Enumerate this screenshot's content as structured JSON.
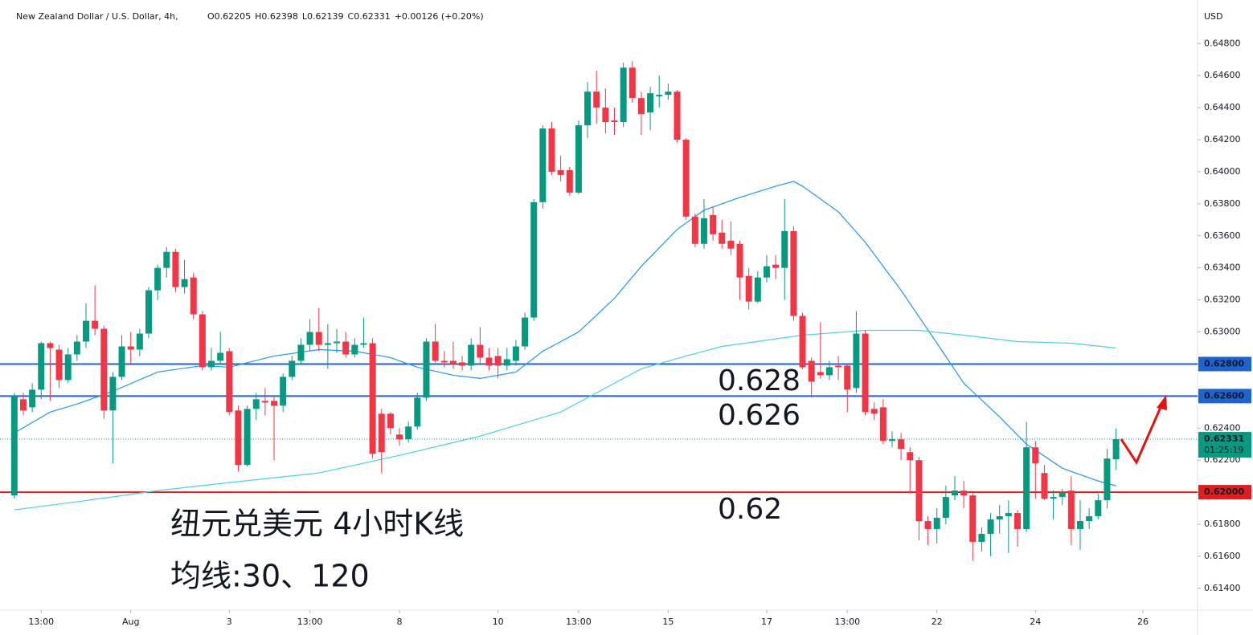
{
  "chart_data": {
    "type": "candlestick",
    "title": "New Zealand Dollar / U.S. Dollar, 4h,",
    "legend_values": [
      "O0.62205",
      "H0.62398",
      "L0.62139",
      "C0.62331",
      "+0.00126 (+0.20%)"
    ],
    "currency": "USD",
    "up_color": "#089981",
    "down_color": "#f23645",
    "open": [
      0.6198,
      0.6258,
      0.6253,
      0.6264,
      0.6293,
      0.6289,
      0.627,
      0.6286,
      0.6294,
      0.6307,
      0.6302,
      0.6251,
      0.6272,
      0.6291,
      0.6289,
      0.6299,
      0.6326,
      0.634,
      0.635,
      0.6328,
      0.6334,
      0.6311,
      0.6278,
      0.6282,
      0.6288,
      0.6251,
      0.6217,
      0.6252,
      0.6257,
      0.6257,
      0.6254,
      0.6272,
      0.6282,
      0.6292,
      0.63,
      0.6292,
      0.6293,
      0.6294,
      0.6286,
      0.6292,
      0.6293,
      0.6249,
      0.6249,
      0.6236,
      0.6233,
      0.6241,
      0.6259,
      0.6294,
      0.6282,
      0.6282,
      0.6281,
      0.6279,
      0.6292,
      0.6284,
      0.6285,
      0.6279,
      0.6282,
      0.6291,
      0.6309,
      0.6381,
      0.6427,
      0.6401,
      0.6401,
      0.6387,
      0.6429,
      0.645,
      0.644,
      0.6432,
      0.6431,
      0.6465,
      0.6446,
      0.6437,
      0.6447,
      0.6448,
      0.645,
      0.642,
      0.6372,
      0.6355,
      0.6373,
      0.6362,
      0.6357,
      0.6355,
      0.6335,
      0.6319,
      0.6334,
      0.6342,
      0.634,
      0.6363,
      0.631,
      0.6282,
      0.6275,
      0.6273,
      0.6279,
      0.6279,
      0.6265,
      0.6299,
      0.6252,
      0.6253,
      0.6232,
      0.6233,
      0.6225,
      0.622,
      0.6182,
      0.6177,
      0.6184,
      0.6198,
      0.6201,
      0.6198,
      0.6169,
      0.6174,
      0.6183,
      0.6185,
      0.6187,
      0.6177,
      0.6228,
      0.6212,
      0.6196,
      0.6197,
      0.6201,
      0.6177,
      0.6182,
      0.6185,
      0.6195,
      0.62205
    ],
    "high": [
      0.6262,
      0.6262,
      0.6268,
      0.6294,
      0.6294,
      0.6292,
      0.629,
      0.6298,
      0.6318,
      0.6329,
      0.6304,
      0.6275,
      0.6298,
      0.63,
      0.6302,
      0.6328,
      0.6342,
      0.6353,
      0.6352,
      0.6345,
      0.6337,
      0.6313,
      0.629,
      0.63,
      0.629,
      0.6254,
      0.6254,
      0.6262,
      0.6265,
      0.626,
      0.6274,
      0.6285,
      0.6296,
      0.6308,
      0.6315,
      0.6305,
      0.6302,
      0.63,
      0.6296,
      0.6309,
      0.6296,
      0.6252,
      0.625,
      0.624,
      0.6244,
      0.6262,
      0.6296,
      0.6305,
      0.6288,
      0.6294,
      0.6285,
      0.6296,
      0.6303,
      0.629,
      0.629,
      0.629,
      0.6295,
      0.6312,
      0.6383,
      0.6429,
      0.6431,
      0.641,
      0.6403,
      0.6432,
      0.6456,
      0.6463,
      0.6452,
      0.644,
      0.6468,
      0.6469,
      0.645,
      0.6453,
      0.646,
      0.6455,
      0.6451,
      0.6421,
      0.6374,
      0.6383,
      0.6378,
      0.637,
      0.6369,
      0.6357,
      0.634,
      0.6338,
      0.6348,
      0.6348,
      0.6383,
      0.6366,
      0.6312,
      0.6284,
      0.6306,
      0.6282,
      0.6285,
      0.628,
      0.6313,
      0.6301,
      0.6256,
      0.6258,
      0.6238,
      0.6237,
      0.6228,
      0.6222,
      0.6185,
      0.619,
      0.6204,
      0.621,
      0.6207,
      0.62,
      0.6178,
      0.6187,
      0.6192,
      0.6195,
      0.6189,
      0.6244,
      0.6232,
      0.6217,
      0.6201,
      0.6202,
      0.621,
      0.6195,
      0.619,
      0.6199,
      0.6227,
      0.62398
    ],
    "low": [
      0.6196,
      0.6248,
      0.625,
      0.6258,
      0.6257,
      0.6265,
      0.6268,
      0.6282,
      0.629,
      0.6298,
      0.6246,
      0.6218,
      0.627,
      0.628,
      0.6285,
      0.6296,
      0.632,
      0.6334,
      0.6325,
      0.6324,
      0.6308,
      0.6276,
      0.6276,
      0.628,
      0.6248,
      0.6213,
      0.6216,
      0.6245,
      0.6248,
      0.622,
      0.625,
      0.627,
      0.628,
      0.6288,
      0.6288,
      0.6277,
      0.6287,
      0.6284,
      0.6284,
      0.629,
      0.6221,
      0.6212,
      0.6236,
      0.6229,
      0.6231,
      0.6239,
      0.6257,
      0.6281,
      0.6278,
      0.6277,
      0.6276,
      0.6276,
      0.628,
      0.6276,
      0.6271,
      0.6276,
      0.6279,
      0.6289,
      0.6307,
      0.6377,
      0.6398,
      0.6394,
      0.6385,
      0.6386,
      0.6421,
      0.643,
      0.6424,
      0.6423,
      0.6428,
      0.6443,
      0.6423,
      0.6426,
      0.644,
      0.6445,
      0.6418,
      0.637,
      0.6353,
      0.6352,
      0.6357,
      0.6352,
      0.6348,
      0.632,
      0.6314,
      0.6318,
      0.6331,
      0.6333,
      0.632,
      0.6307,
      0.6277,
      0.6259,
      0.6271,
      0.627,
      0.627,
      0.625,
      0.6262,
      0.6248,
      0.6245,
      0.623,
      0.6228,
      0.622,
      0.6199,
      0.617,
      0.6167,
      0.6168,
      0.618,
      0.6195,
      0.619,
      0.6157,
      0.6163,
      0.616,
      0.6174,
      0.6162,
      0.6166,
      0.6175,
      0.6196,
      0.6195,
      0.6183,
      0.6192,
      0.6167,
      0.6164,
      0.6177,
      0.6183,
      0.619,
      0.62139
    ],
    "close": [
      0.626,
      0.6251,
      0.6264,
      0.6293,
      0.629,
      0.627,
      0.6286,
      0.6294,
      0.6307,
      0.6302,
      0.6251,
      0.6272,
      0.6291,
      0.6289,
      0.6299,
      0.6326,
      0.634,
      0.635,
      0.6328,
      0.6333,
      0.6311,
      0.6278,
      0.6282,
      0.6287,
      0.625,
      0.6217,
      0.6252,
      0.6258,
      0.6256,
      0.6254,
      0.6272,
      0.6282,
      0.6292,
      0.63,
      0.6292,
      0.6293,
      0.6294,
      0.6286,
      0.6292,
      0.6293,
      0.6224,
      0.6225,
      0.624,
      0.6233,
      0.6241,
      0.6259,
      0.6294,
      0.6282,
      0.6281,
      0.628,
      0.6279,
      0.6292,
      0.6284,
      0.6279,
      0.6279,
      0.6283,
      0.6291,
      0.6309,
      0.6381,
      0.6427,
      0.64,
      0.6398,
      0.6387,
      0.6429,
      0.645,
      0.644,
      0.6431,
      0.6431,
      0.6465,
      0.6446,
      0.6436,
      0.6449,
      0.6448,
      0.645,
      0.642,
      0.6372,
      0.6355,
      0.6371,
      0.6361,
      0.6355,
      0.6352,
      0.6334,
      0.6319,
      0.6334,
      0.6341,
      0.634,
      0.6363,
      0.631,
      0.6278,
      0.6269,
      0.6273,
      0.6278,
      0.6278,
      0.6264,
      0.6299,
      0.625,
      0.6249,
      0.6232,
      0.6233,
      0.6227,
      0.622,
      0.6182,
      0.6177,
      0.6184,
      0.6197,
      0.6201,
      0.6198,
      0.6169,
      0.6174,
      0.6183,
      0.6185,
      0.6187,
      0.6177,
      0.6228,
      0.6218,
      0.6196,
      0.6197,
      0.62,
      0.6177,
      0.6182,
      0.6185,
      0.6195,
      0.6221,
      0.62331
    ],
    "lines": [
      {
        "color": "#2196f3",
        "x": [
          0,
          4,
          7,
          11,
          16,
          21,
          24,
          29,
          34,
          38,
          42,
          45,
          49,
          52,
          56,
          59,
          63,
          67,
          70,
          74,
          77,
          81,
          85,
          87,
          88,
          92,
          95,
          99,
          103,
          106,
          110,
          113,
          117,
          121,
          123
        ],
        "values": [
          0.6237,
          0.625,
          0.6255,
          0.6263,
          0.6275,
          0.6279,
          0.6278,
          0.6285,
          0.6289,
          0.6288,
          0.6284,
          0.6278,
          0.6273,
          0.6271,
          0.6275,
          0.6288,
          0.63,
          0.6321,
          0.6341,
          0.6364,
          0.6376,
          0.6384,
          0.6391,
          0.6394,
          0.6391,
          0.6375,
          0.6356,
          0.6326,
          0.6293,
          0.6268,
          0.6247,
          0.623,
          0.6215,
          0.6207,
          0.6204
        ]
      },
      {
        "color": "#4dd0e1",
        "x": [
          0,
          7,
          16,
          24,
          34,
          43,
          52,
          61,
          70,
          75,
          79,
          88,
          95,
          101,
          106,
          112,
          118,
          123
        ],
        "values": [
          0.6189,
          0.6194,
          0.6201,
          0.6206,
          0.6212,
          0.6223,
          0.6235,
          0.625,
          0.6277,
          0.6285,
          0.6291,
          0.6298,
          0.6301,
          0.6301,
          0.6298,
          0.6294,
          0.6293,
          0.629
        ]
      }
    ],
    "levels": [
      {
        "value": 0.628,
        "label": "0.62800",
        "color": "#1e63d0"
      },
      {
        "value": 0.626,
        "label": "0.62600",
        "color": "#1e63d0"
      },
      {
        "value": 0.62,
        "label": "0.62000",
        "color": "#e01e1e"
      }
    ],
    "last": {
      "value": 0.62331,
      "label": "0.62331",
      "countdown": "01:25:19"
    },
    "annotations": [
      "0.628",
      "0.626",
      "0.62",
      "纽元兑美元 4小时K线",
      "均线:30、120"
    ],
    "xlim": [
      -1.6,
      132.1
    ],
    "xticks": [
      {
        "value": 3,
        "label": "13:00"
      },
      {
        "value": 13,
        "label": "Aug"
      },
      {
        "value": 24,
        "label": "3"
      },
      {
        "value": 33,
        "label": "13:00"
      },
      {
        "value": 43,
        "label": "8"
      },
      {
        "value": 54,
        "label": "10"
      },
      {
        "value": 63,
        "label": "13:00"
      },
      {
        "value": 73,
        "label": "15"
      },
      {
        "value": 84,
        "label": "17"
      },
      {
        "value": 93,
        "label": "13:00"
      },
      {
        "value": 103,
        "label": "22"
      },
      {
        "value": 114,
        "label": "24"
      },
      {
        "value": 126,
        "label": "26"
      }
    ],
    "ylim": [
      0.61264,
      0.65072
    ],
    "yticks": [
      {
        "value": 0.614,
        "label": "0.61400"
      },
      {
        "value": 0.616,
        "label": "0.61600"
      },
      {
        "value": 0.618,
        "label": "0.61800"
      },
      {
        "value": 0.62,
        "label": "0.62000"
      },
      {
        "value": 0.622,
        "label": "0.62200"
      },
      {
        "value": 0.624,
        "label": "0.62400"
      },
      {
        "value": 0.626,
        "label": "0.62600"
      },
      {
        "value": 0.628,
        "label": "0.62800"
      },
      {
        "value": 0.63,
        "label": "0.63000"
      },
      {
        "value": 0.632,
        "label": "0.63200"
      },
      {
        "value": 0.634,
        "label": "0.63400"
      },
      {
        "value": 0.636,
        "label": "0.63600"
      },
      {
        "value": 0.638,
        "label": "0.63800"
      },
      {
        "value": 0.64,
        "label": "0.64000"
      },
      {
        "value": 0.642,
        "label": "0.64200"
      },
      {
        "value": 0.644,
        "label": "0.64400"
      },
      {
        "value": 0.646,
        "label": "0.64600"
      },
      {
        "value": 0.648,
        "label": "0.64800"
      }
    ]
  }
}
